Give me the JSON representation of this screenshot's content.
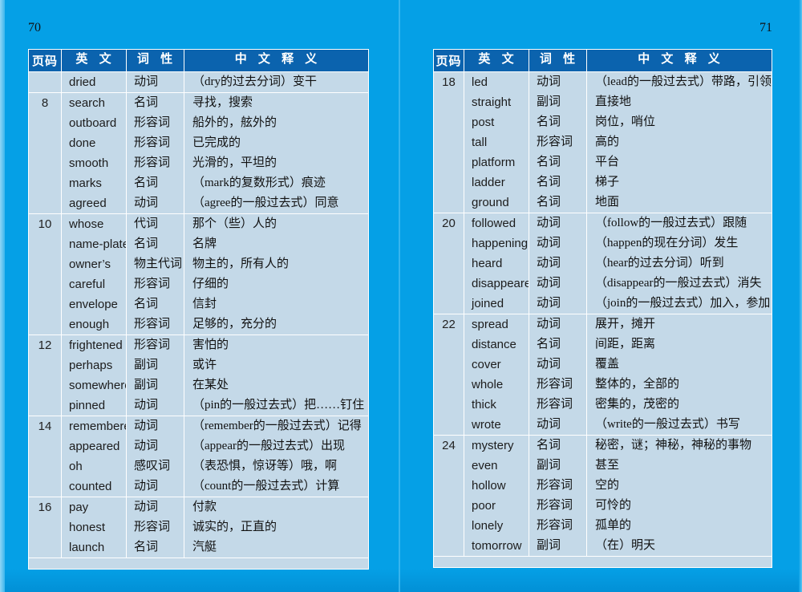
{
  "colors": {
    "background": "#05a0e6",
    "table_header": "#0b63ae",
    "table_row": "#c4d9e8"
  },
  "pages": [
    {
      "page_number": "70",
      "table": {
        "headers": [
          "页码",
          "英 文",
          "词 性",
          "中 文 释 义"
        ],
        "groups": [
          {
            "page": "",
            "rows": [
              [
                "dried",
                "动词",
                "（dry的过去分词）变干"
              ]
            ]
          },
          {
            "page": "8",
            "rows": [
              [
                "search",
                "名词",
                "寻找，搜索"
              ],
              [
                "outboard",
                "形容词",
                "船外的，舷外的"
              ],
              [
                "done",
                "形容词",
                "已完成的"
              ],
              [
                "smooth",
                "形容词",
                "光滑的，平坦的"
              ],
              [
                "marks",
                "名词",
                "（mark的复数形式）痕迹"
              ],
              [
                "agreed",
                "动词",
                "（agree的一般过去式）同意"
              ]
            ]
          },
          {
            "page": "10",
            "rows": [
              [
                "whose",
                "代词",
                "那个（些）人的"
              ],
              [
                "name-plate",
                "名词",
                "名牌"
              ],
              [
                "owner’s",
                "物主代词",
                "物主的，所有人的"
              ],
              [
                "careful",
                "形容词",
                "仔细的"
              ],
              [
                "envelope",
                "名词",
                "信封"
              ],
              [
                "enough",
                "形容词",
                "足够的，充分的"
              ]
            ]
          },
          {
            "page": "12",
            "rows": [
              [
                "frightened",
                "形容词",
                "害怕的"
              ],
              [
                "perhaps",
                "副词",
                "或许"
              ],
              [
                "somewhere",
                "副词",
                "在某处"
              ],
              [
                "pinned",
                "动词",
                "（pin的一般过去式）把……钉住"
              ]
            ]
          },
          {
            "page": "14",
            "rows": [
              [
                "remembered",
                "动词",
                "（remember的一般过去式）记得"
              ],
              [
                "appeared",
                "动词",
                "（appear的一般过去式）出现"
              ],
              [
                "oh",
                "感叹词",
                "（表恐惧，惊讶等）哦，啊"
              ],
              [
                "counted",
                "动词",
                "（count的一般过去式）计算"
              ]
            ]
          },
          {
            "page": "16",
            "rows": [
              [
                "pay",
                "动词",
                "付款"
              ],
              [
                "honest",
                "形容词",
                "诚实的，正直的"
              ],
              [
                "launch",
                "名词",
                "汽艇"
              ]
            ]
          }
        ]
      }
    },
    {
      "page_number": "71",
      "table": {
        "headers": [
          "页码",
          "英 文",
          "词 性",
          "中 文 释 义"
        ],
        "groups": [
          {
            "page": "18",
            "rows": [
              [
                "led",
                "动词",
                "（lead的一般过去式）带路，引领"
              ],
              [
                "straight",
                "副词",
                "直接地"
              ],
              [
                "post",
                "名词",
                "岗位，哨位"
              ],
              [
                "tall",
                "形容词",
                "高的"
              ],
              [
                "platform",
                "名词",
                "平台"
              ],
              [
                "ladder",
                "名词",
                "梯子"
              ],
              [
                "ground",
                "名词",
                "地面"
              ]
            ]
          },
          {
            "page": "20",
            "rows": [
              [
                "followed",
                "动词",
                "（follow的一般过去式）跟随"
              ],
              [
                "happening",
                "动词",
                "（happen的现在分词）发生"
              ],
              [
                "heard",
                "动词",
                "（hear的过去分词）听到"
              ],
              [
                "disappeared",
                "动词",
                "（disappear的一般过去式）消失"
              ],
              [
                "joined",
                "动词",
                "（join的一般过去式）加入，参加"
              ]
            ]
          },
          {
            "page": "22",
            "rows": [
              [
                "spread",
                "动词",
                "展开，摊开"
              ],
              [
                "distance",
                "名词",
                "间距，距离"
              ],
              [
                "cover",
                "动词",
                "覆盖"
              ],
              [
                "whole",
                "形容词",
                "整体的，全部的"
              ],
              [
                "thick",
                "形容词",
                "密集的，茂密的"
              ],
              [
                "wrote",
                "动词",
                "（write的一般过去式）书写"
              ]
            ]
          },
          {
            "page": "24",
            "rows": [
              [
                "mystery",
                "名词",
                "秘密，谜；神秘，神秘的事物"
              ],
              [
                "even",
                "副词",
                "甚至"
              ],
              [
                "hollow",
                "形容词",
                "空的"
              ],
              [
                "poor",
                "形容词",
                "可怜的"
              ],
              [
                "lonely",
                "形容词",
                "孤单的"
              ],
              [
                "tomorrow",
                "副词",
                "（在）明天"
              ]
            ]
          }
        ]
      }
    }
  ]
}
